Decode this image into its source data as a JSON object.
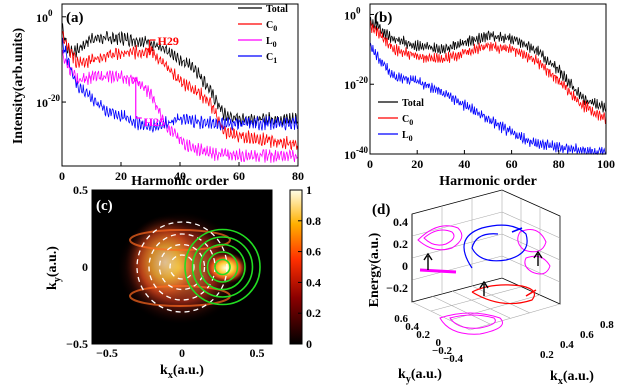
{
  "chart_data": [
    {
      "panel": "(a)",
      "type": "line",
      "xlabel": "Harmonic order",
      "ylabel": "Intensity(arb.units)",
      "xlim": [
        0,
        80
      ],
      "yscale": "log",
      "ylim_exp": [
        -35,
        3
      ],
      "x_ticks": [
        "0",
        "20",
        "40",
        "60",
        "80"
      ],
      "y_ticks": [
        {
          "base": "10",
          "exp": "0"
        },
        {
          "base": "10",
          "exp": "-20"
        }
      ],
      "legend_position": "top-right",
      "series": [
        {
          "name": "Total",
          "legend": {
            "main": "Total",
            "sub": ""
          },
          "color": "#000000",
          "log10_values": [
            [
              0,
              -2
            ],
            [
              2,
              -8
            ],
            [
              5,
              -8
            ],
            [
              10,
              -5
            ],
            [
              20,
              -5
            ],
            [
              30,
              -6
            ],
            [
              40,
              -10
            ],
            [
              45,
              -12
            ],
            [
              50,
              -17
            ],
            [
              55,
              -23
            ],
            [
              60,
              -24
            ],
            [
              70,
              -24
            ],
            [
              80,
              -24
            ]
          ]
        },
        {
          "name": "C0",
          "legend": {
            "main": "C",
            "sub": "0"
          },
          "color": "#ff0000",
          "log10_values": [
            [
              0,
              -4
            ],
            [
              5,
              -11
            ],
            [
              15,
              -9
            ],
            [
              30,
              -8
            ],
            [
              40,
              -15
            ],
            [
              45,
              -17
            ],
            [
              50,
              -20
            ],
            [
              55,
              -27
            ],
            [
              60,
              -28
            ],
            [
              70,
              -29
            ],
            [
              80,
              -30
            ]
          ]
        },
        {
          "name": "L0",
          "legend": {
            "main": "L",
            "sub": "0"
          },
          "color": "#ff00ff",
          "log10_values": [
            [
              0,
              -9
            ],
            [
              5,
              -15
            ],
            [
              10,
              -14
            ],
            [
              20,
              -14
            ],
            [
              25,
              -15
            ],
            [
              30,
              -18
            ],
            [
              35,
              -25
            ],
            [
              40,
              -29
            ],
            [
              45,
              -31
            ],
            [
              50,
              -32
            ],
            [
              60,
              -32.5
            ],
            [
              80,
              -32.5
            ]
          ]
        },
        {
          "name": "C1",
          "legend": {
            "main": "C",
            "sub": "1"
          },
          "color": "#0000ff",
          "log10_values": [
            [
              0,
              -6
            ],
            [
              5,
              -16
            ],
            [
              15,
              -22
            ],
            [
              30,
              -26
            ],
            [
              40,
              -24
            ],
            [
              50,
              -25
            ],
            [
              60,
              -25
            ],
            [
              80,
              -25
            ]
          ]
        }
      ],
      "annotations": [
        {
          "text": "H29",
          "x": 29,
          "log10_y": -5,
          "color": "#ff0000"
        },
        {
          "text": "H25",
          "x": 25,
          "log10_y": -14,
          "color": "#ff00ff"
        }
      ]
    },
    {
      "panel": "(b)",
      "type": "line",
      "xlabel": "Harmonic order",
      "ylabel": "",
      "xlim": [
        0,
        100
      ],
      "yscale": "log",
      "ylim_exp": [
        -40,
        3
      ],
      "x_ticks": [
        "0",
        "20",
        "40",
        "60",
        "80",
        "100"
      ],
      "y_ticks": [
        {
          "base": "10",
          "exp": "0"
        },
        {
          "base": "10",
          "exp": "-20"
        },
        {
          "base": "10",
          "exp": "-40"
        }
      ],
      "legend_position": "bottom-left",
      "series": [
        {
          "name": "Total",
          "legend": {
            "main": "Total",
            "sub": ""
          },
          "color": "#000000",
          "log10_values": [
            [
              0,
              -2
            ],
            [
              10,
              -7
            ],
            [
              20,
              -9
            ],
            [
              30,
              -10
            ],
            [
              40,
              -8
            ],
            [
              50,
              -6
            ],
            [
              60,
              -7
            ],
            [
              70,
              -10
            ],
            [
              80,
              -16
            ],
            [
              90,
              -24
            ],
            [
              100,
              -27
            ]
          ]
        },
        {
          "name": "C0",
          "legend": {
            "main": "C",
            "sub": "0"
          },
          "color": "#ff0000",
          "log10_values": [
            [
              0,
              -3
            ],
            [
              10,
              -10
            ],
            [
              20,
              -12
            ],
            [
              30,
              -13
            ],
            [
              40,
              -11
            ],
            [
              50,
              -9
            ],
            [
              60,
              -10
            ],
            [
              70,
              -13
            ],
            [
              80,
              -19
            ],
            [
              90,
              -26
            ],
            [
              100,
              -30
            ]
          ]
        },
        {
          "name": "L0",
          "legend": {
            "main": "L",
            "sub": "0"
          },
          "color": "#0000ff",
          "log10_values": [
            [
              0,
              -9
            ],
            [
              10,
              -18
            ],
            [
              20,
              -19
            ],
            [
              30,
              -22
            ],
            [
              40,
              -26
            ],
            [
              50,
              -30
            ],
            [
              55,
              -32
            ],
            [
              60,
              -34
            ],
            [
              70,
              -37
            ],
            [
              80,
              -38
            ],
            [
              90,
              -39
            ],
            [
              100,
              -39.5
            ]
          ]
        }
      ]
    },
    {
      "panel": "(c)",
      "type": "heatmap",
      "xlabel": {
        "main": "k",
        "sub": "x",
        "unit": "(a.u.)"
      },
      "ylabel": {
        "main": "k",
        "sub": "y",
        "unit": "(a.u.)"
      },
      "xlim": [
        -0.6,
        0.6
      ],
      "ylim": [
        -0.5,
        0.5
      ],
      "x_ticks": [
        "−0.5",
        "0",
        "0.5"
      ],
      "y_ticks": [
        "0.5",
        "0",
        "−0.5"
      ],
      "colorbar_ticks": [
        "1",
        "0.8",
        "0.6",
        "0.4",
        "0.2",
        "0"
      ],
      "colorbar_range": [
        0,
        1
      ],
      "overlays": [
        {
          "style": "white-dashed-circles",
          "center": [
            0,
            0
          ],
          "radii": [
            0.08,
            0.15,
            0.22,
            0.3
          ]
        },
        {
          "style": "green-circles",
          "center": [
            0.27,
            0
          ],
          "radii": [
            0.05,
            0.1,
            0.15,
            0.2,
            0.25
          ]
        }
      ]
    },
    {
      "panel": "(d)",
      "type": "3d-line",
      "zlabel": "Energy(a.u.)",
      "xlabel": {
        "main": "k",
        "sub": "x",
        "unit": "(a.u.)"
      },
      "ylabel": {
        "main": "k",
        "sub": "y",
        "unit": "(a.u.)"
      },
      "z_ticks": [
        "0.4",
        "0.2",
        "0",
        "−0.2"
      ],
      "y_ticks": [
        "0.6",
        "0.4",
        "0.2",
        "0",
        "−0.2",
        "−0.4"
      ],
      "x_ticks": [
        "0.2",
        "0.4",
        "0.6",
        "0.8"
      ],
      "trajectories": [
        {
          "color": "#0000ff"
        },
        {
          "color": "#ff0000"
        },
        {
          "color": "#ff00ff"
        },
        {
          "color": "#000000"
        }
      ]
    }
  ]
}
